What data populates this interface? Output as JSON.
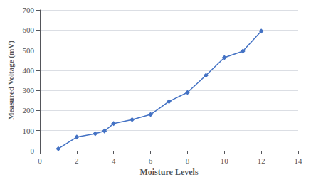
{
  "chart_data": {
    "type": "line",
    "x": [
      1,
      2,
      3,
      3.5,
      4,
      5,
      6,
      7,
      8,
      9,
      10,
      11,
      12
    ],
    "values": [
      10,
      68,
      85,
      98,
      135,
      155,
      180,
      245,
      290,
      375,
      463,
      495,
      595
    ],
    "color": "#4472c4",
    "marker": "diamond",
    "xlabel": "Moisture Levels",
    "ylabel": "Measured Voltage (mV)",
    "xlim": [
      0,
      14
    ],
    "ylim": [
      0,
      700
    ],
    "xticks": [
      0,
      2,
      4,
      6,
      8,
      10,
      12,
      14
    ],
    "yticks": [
      0,
      100,
      200,
      300,
      400,
      500,
      600,
      700
    ],
    "grid": "y"
  }
}
